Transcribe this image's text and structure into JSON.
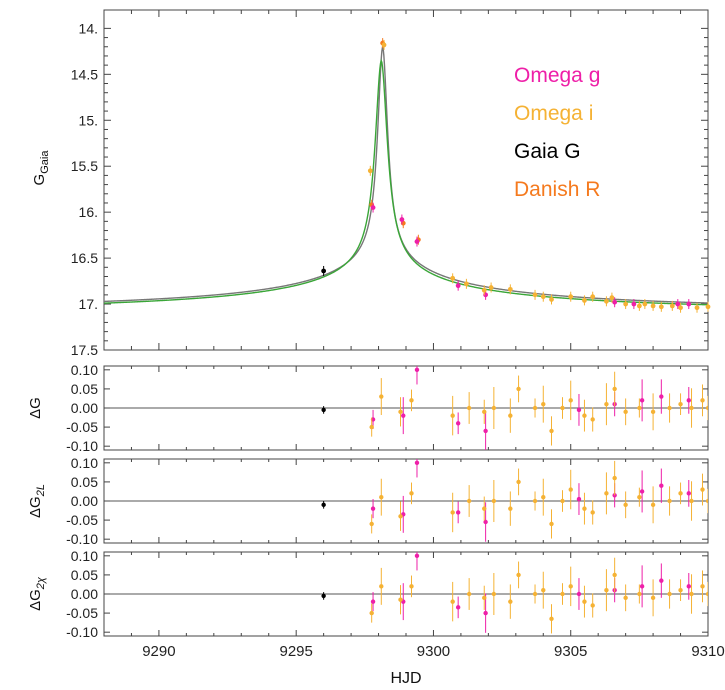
{
  "chart_data": [
    {
      "type": "scatter",
      "panel": "main",
      "ylabel_main": "G",
      "ylabel_sub": "Gaia",
      "xlabel": "HJD",
      "xlim": [
        9288.0,
        9310.0
      ],
      "ylim": [
        17.5,
        13.8
      ],
      "y_inverted": true,
      "xticks": [
        "9290",
        "9295",
        "9300",
        "9305",
        "9310"
      ],
      "xtick_values": [
        9290,
        9295,
        9300,
        9305,
        9310
      ],
      "yticks": [
        "14.",
        "14.5",
        "15.",
        "15.5",
        "16.",
        "16.5",
        "17.",
        "17.5"
      ],
      "ytick_values": [
        14.0,
        14.5,
        15.0,
        15.5,
        16.0,
        16.5,
        17.0,
        17.5
      ],
      "legend": [
        {
          "name": "Omega g",
          "color": "#ee1fa8"
        },
        {
          "name": "Omega i",
          "color": "#f5b234"
        },
        {
          "name": "Gaia G",
          "color": "#000000"
        },
        {
          "name": "Danish R",
          "color": "#f57a1e"
        }
      ],
      "legend_position": "top-right",
      "models": [
        {
          "color": "#777777",
          "t0": 9298.15,
          "peak": 14.2,
          "base": 17.4,
          "width": 0.22,
          "wing": 2.1
        },
        {
          "color": "#3aa638",
          "t0": 9298.1,
          "peak": 14.35,
          "base": 17.4,
          "width": 0.27,
          "wing": 2.1
        }
      ],
      "series": [
        {
          "name": "Gaia G",
          "color": "#000000",
          "points": [
            [
              9296.0,
              16.64
            ]
          ]
        },
        {
          "name": "Danish R",
          "color": "#f57a1e",
          "points": [
            [
              9297.75,
              15.92
            ],
            [
              9298.15,
              14.16
            ],
            [
              9298.9,
              16.12
            ],
            [
              9299.45,
              16.3
            ]
          ]
        },
        {
          "name": "Omega g",
          "color": "#ee1fa8",
          "points": [
            [
              9297.8,
              15.95
            ],
            [
              9298.85,
              16.08
            ],
            [
              9299.4,
              16.32
            ],
            [
              9300.9,
              16.8
            ],
            [
              9301.9,
              16.9
            ],
            [
              9306.6,
              16.98
            ],
            [
              9307.3,
              17.0
            ],
            [
              9308.9,
              17.0
            ],
            [
              9309.3,
              17.0
            ]
          ]
        },
        {
          "name": "Omega i",
          "color": "#f5b234",
          "points": [
            [
              9297.7,
              15.55
            ],
            [
              9298.2,
              14.18
            ],
            [
              9300.7,
              16.72
            ],
            [
              9301.2,
              16.78
            ],
            [
              9301.85,
              16.85
            ],
            [
              9302.1,
              16.82
            ],
            [
              9302.8,
              16.84
            ],
            [
              9303.7,
              16.9
            ],
            [
              9304.0,
              16.92
            ],
            [
              9304.3,
              16.95
            ],
            [
              9305.0,
              16.92
            ],
            [
              9305.5,
              16.96
            ],
            [
              9305.8,
              16.92
            ],
            [
              9306.3,
              16.97
            ],
            [
              9306.5,
              16.93
            ],
            [
              9307.0,
              17.0
            ],
            [
              9307.5,
              17.02
            ],
            [
              9307.7,
              17.0
            ],
            [
              9308.0,
              17.02
            ],
            [
              9308.3,
              17.03
            ],
            [
              9308.7,
              17.02
            ],
            [
              9309.0,
              17.04
            ],
            [
              9309.6,
              17.04
            ],
            [
              9310.0,
              17.03
            ]
          ]
        }
      ]
    },
    {
      "type": "scatter",
      "panel": "residuals",
      "ylabel": "ΔG",
      "ylim": [
        -0.11,
        0.11
      ],
      "yticks": [
        "0.10",
        "0.05",
        "0.00",
        "-0.05",
        "-0.10"
      ],
      "ytick_values": [
        0.1,
        0.05,
        0.0,
        -0.05,
        -0.1
      ],
      "series": [
        {
          "name": "Gaia G",
          "color": "#000000",
          "points": [
            [
              9296.0,
              -0.005
            ]
          ]
        },
        {
          "name": "Omega g",
          "color": "#ee1fa8",
          "points": [
            [
              9297.8,
              -0.03
            ],
            [
              9298.9,
              -0.02
            ],
            [
              9299.4,
              0.1
            ],
            [
              9300.9,
              -0.04
            ],
            [
              9301.9,
              -0.06
            ],
            [
              9305.3,
              -0.005
            ],
            [
              9306.6,
              0.01
            ],
            [
              9307.6,
              0.02
            ],
            [
              9308.3,
              0.03
            ],
            [
              9309.3,
              0.02
            ]
          ]
        },
        {
          "name": "Omega i",
          "color": "#f5b234",
          "points": [
            [
              9297.75,
              -0.05
            ],
            [
              9298.1,
              0.03
            ],
            [
              9298.8,
              -0.01
            ],
            [
              9299.2,
              0.02
            ],
            [
              9300.7,
              -0.02
            ],
            [
              9301.3,
              0.0
            ],
            [
              9301.85,
              -0.01
            ],
            [
              9302.2,
              0.0
            ],
            [
              9302.8,
              -0.02
            ],
            [
              9303.1,
              0.05
            ],
            [
              9303.7,
              0.0
            ],
            [
              9304.0,
              0.01
            ],
            [
              9304.3,
              -0.06
            ],
            [
              9304.7,
              0.0
            ],
            [
              9305.0,
              0.02
            ],
            [
              9305.5,
              -0.02
            ],
            [
              9305.8,
              -0.03
            ],
            [
              9306.3,
              0.01
            ],
            [
              9306.6,
              0.05
            ],
            [
              9307.0,
              -0.01
            ],
            [
              9307.5,
              0.0
            ],
            [
              9308.0,
              -0.01
            ],
            [
              9308.6,
              0.0
            ],
            [
              9309.0,
              0.01
            ],
            [
              9309.4,
              0.0
            ],
            [
              9309.8,
              0.02
            ],
            [
              9310.0,
              0.0
            ]
          ]
        }
      ]
    },
    {
      "type": "scatter",
      "panel": "residuals",
      "ylabel": "ΔG",
      "ylabel_sub": "2L",
      "ylim": [
        -0.11,
        0.11
      ],
      "yticks": [
        "0.10",
        "0.05",
        "0.00",
        "-0.05",
        "-0.10"
      ],
      "ytick_values": [
        0.1,
        0.05,
        0.0,
        -0.05,
        -0.1
      ],
      "series": [
        {
          "name": "Gaia G",
          "color": "#000000",
          "points": [
            [
              9296.0,
              -0.01
            ]
          ]
        },
        {
          "name": "Omega g",
          "color": "#ee1fa8",
          "points": [
            [
              9297.8,
              -0.02
            ],
            [
              9298.9,
              -0.035
            ],
            [
              9299.4,
              0.1
            ],
            [
              9300.9,
              -0.03
            ],
            [
              9301.9,
              -0.055
            ],
            [
              9305.3,
              0.005
            ],
            [
              9306.6,
              0.015
            ],
            [
              9307.6,
              0.025
            ],
            [
              9308.3,
              0.04
            ],
            [
              9309.3,
              0.02
            ]
          ]
        },
        {
          "name": "Omega i",
          "color": "#f5b234",
          "points": [
            [
              9297.75,
              -0.06
            ],
            [
              9298.1,
              0.01
            ],
            [
              9298.8,
              -0.04
            ],
            [
              9299.2,
              0.02
            ],
            [
              9300.7,
              -0.03
            ],
            [
              9301.3,
              0.0
            ],
            [
              9301.85,
              -0.02
            ],
            [
              9302.2,
              0.0
            ],
            [
              9302.8,
              -0.02
            ],
            [
              9303.1,
              0.05
            ],
            [
              9303.7,
              0.0
            ],
            [
              9304.0,
              0.01
            ],
            [
              9304.3,
              -0.06
            ],
            [
              9304.7,
              0.0
            ],
            [
              9305.0,
              0.03
            ],
            [
              9305.5,
              -0.02
            ],
            [
              9305.8,
              -0.03
            ],
            [
              9306.3,
              0.02
            ],
            [
              9306.6,
              0.06
            ],
            [
              9307.0,
              -0.01
            ],
            [
              9307.5,
              0.01
            ],
            [
              9308.0,
              -0.01
            ],
            [
              9308.6,
              0.0
            ],
            [
              9309.0,
              0.02
            ],
            [
              9309.4,
              0.0
            ],
            [
              9309.8,
              0.03
            ],
            [
              9310.0,
              0.0
            ]
          ]
        }
      ]
    },
    {
      "type": "scatter",
      "panel": "residuals",
      "ylabel": "ΔG",
      "ylabel_sub": "2χ",
      "ylim": [
        -0.11,
        0.11
      ],
      "yticks": [
        "0.10",
        "0.05",
        "0.00",
        "-0.05",
        "-0.10"
      ],
      "ytick_values": [
        0.1,
        0.05,
        0.0,
        -0.05,
        -0.1
      ],
      "series": [
        {
          "name": "Gaia G",
          "color": "#000000",
          "points": [
            [
              9296.0,
              -0.005
            ]
          ]
        },
        {
          "name": "Omega g",
          "color": "#ee1fa8",
          "points": [
            [
              9297.8,
              -0.02
            ],
            [
              9298.9,
              -0.02
            ],
            [
              9299.4,
              0.1
            ],
            [
              9300.9,
              -0.035
            ],
            [
              9301.9,
              -0.05
            ],
            [
              9305.3,
              0.0
            ],
            [
              9306.6,
              0.01
            ],
            [
              9307.6,
              0.02
            ],
            [
              9308.3,
              0.035
            ],
            [
              9309.3,
              0.02
            ]
          ]
        },
        {
          "name": "Omega i",
          "color": "#f5b234",
          "points": [
            [
              9297.75,
              -0.05
            ],
            [
              9298.1,
              0.02
            ],
            [
              9298.8,
              -0.015
            ],
            [
              9299.2,
              0.02
            ],
            [
              9300.7,
              -0.02
            ],
            [
              9301.3,
              0.0
            ],
            [
              9301.85,
              -0.01
            ],
            [
              9302.2,
              0.0
            ],
            [
              9302.8,
              -0.02
            ],
            [
              9303.1,
              0.05
            ],
            [
              9303.7,
              0.0
            ],
            [
              9304.0,
              0.01
            ],
            [
              9304.3,
              -0.065
            ],
            [
              9304.7,
              0.0
            ],
            [
              9305.0,
              0.02
            ],
            [
              9305.5,
              -0.02
            ],
            [
              9305.8,
              -0.03
            ],
            [
              9306.3,
              0.01
            ],
            [
              9306.6,
              0.05
            ],
            [
              9307.0,
              -0.01
            ],
            [
              9307.5,
              0.0
            ],
            [
              9308.0,
              -0.01
            ],
            [
              9308.6,
              0.0
            ],
            [
              9309.0,
              0.01
            ],
            [
              9309.4,
              0.0
            ],
            [
              9309.8,
              0.02
            ],
            [
              9310.0,
              0.0
            ]
          ]
        }
      ]
    }
  ]
}
